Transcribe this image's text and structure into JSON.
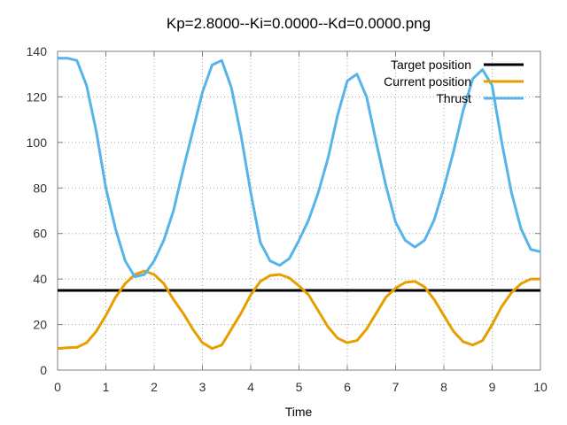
{
  "chart_data": {
    "type": "line",
    "title": "Kp=2.8000--Ki=0.0000--Kd=0.0000.png",
    "xlabel": "Time",
    "ylabel": "",
    "xlim": [
      0,
      10
    ],
    "ylim": [
      0,
      140
    ],
    "xticks": [
      0,
      1,
      2,
      3,
      4,
      5,
      6,
      7,
      8,
      9,
      10
    ],
    "yticks": [
      0,
      20,
      40,
      60,
      80,
      100,
      120,
      140
    ],
    "grid": true,
    "legend_position": "top-right",
    "series": [
      {
        "name": "Target position",
        "color": "#000000",
        "x": [
          0,
          10
        ],
        "y": [
          35,
          35
        ]
      },
      {
        "name": "Current position",
        "color": "#e69f00",
        "x": [
          0,
          0.2,
          0.4,
          0.6,
          0.8,
          1.0,
          1.2,
          1.4,
          1.6,
          1.8,
          2.0,
          2.2,
          2.4,
          2.6,
          2.8,
          3.0,
          3.2,
          3.4,
          3.6,
          3.8,
          4.0,
          4.2,
          4.4,
          4.6,
          4.8,
          5.0,
          5.2,
          5.4,
          5.6,
          5.8,
          6.0,
          6.2,
          6.4,
          6.6,
          6.8,
          7.0,
          7.2,
          7.4,
          7.6,
          7.8,
          8.0,
          8.2,
          8.4,
          8.6,
          8.8,
          9.0,
          9.2,
          9.4,
          9.6,
          9.8,
          10.0
        ],
        "y": [
          9.5,
          9.8,
          10,
          12,
          17,
          24,
          32,
          38,
          42,
          43.5,
          42,
          38,
          31,
          25,
          18,
          12,
          9.5,
          11,
          18,
          25,
          33,
          39,
          41.5,
          42,
          40.5,
          37,
          33,
          26,
          19,
          14,
          12,
          13,
          18,
          25,
          32,
          36,
          38.5,
          39,
          36.5,
          31,
          24,
          17,
          12.5,
          11,
          13,
          20,
          28,
          34,
          38,
          40,
          40
        ]
      },
      {
        "name": "Thrust",
        "color": "#56b4e9",
        "x": [
          0,
          0.2,
          0.4,
          0.6,
          0.8,
          1.0,
          1.2,
          1.4,
          1.6,
          1.8,
          2.0,
          2.2,
          2.4,
          2.6,
          2.8,
          3.0,
          3.2,
          3.4,
          3.6,
          3.8,
          4.0,
          4.2,
          4.4,
          4.6,
          4.8,
          5.0,
          5.2,
          5.4,
          5.6,
          5.8,
          6.0,
          6.2,
          6.4,
          6.6,
          6.8,
          7.0,
          7.2,
          7.4,
          7.6,
          7.8,
          8.0,
          8.2,
          8.4,
          8.6,
          8.8,
          9.0,
          9.2,
          9.4,
          9.6,
          9.8,
          10.0
        ],
        "y": [
          137,
          137,
          136,
          125,
          105,
          80,
          62,
          48,
          41,
          42,
          48,
          57,
          70,
          88,
          105,
          122,
          134,
          136,
          124,
          103,
          78,
          56,
          48,
          46,
          49,
          57,
          66,
          78,
          93,
          112,
          127,
          130,
          120,
          100,
          81,
          65,
          57,
          54,
          57,
          66,
          80,
          96,
          114,
          128,
          132,
          125,
          100,
          78,
          62,
          53,
          52
        ]
      }
    ]
  }
}
